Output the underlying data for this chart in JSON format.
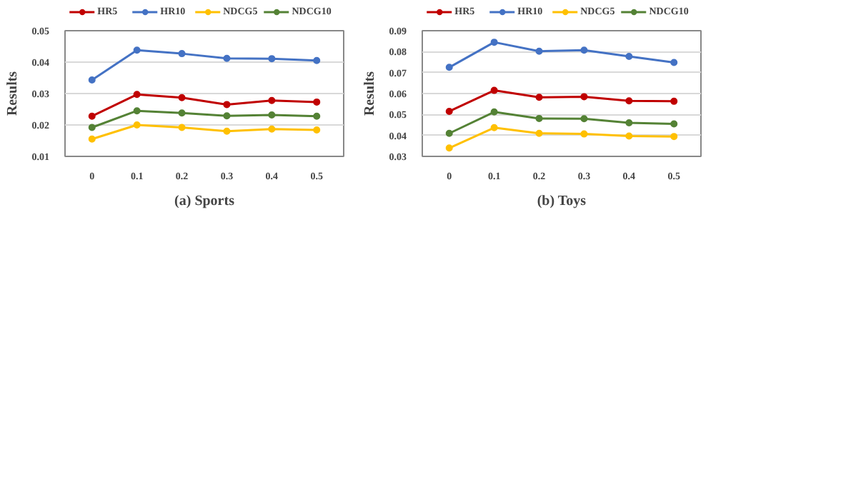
{
  "chart_data": [
    {
      "type": "line",
      "title": "(a) Sports",
      "ylabel": "Results",
      "categories": [
        "0",
        "0.1",
        "0.2",
        "0.3",
        "0.4",
        "0.5"
      ],
      "ylim": [
        0.01,
        0.05
      ],
      "yticks": [
        0.01,
        0.02,
        0.03,
        0.04,
        0.05
      ],
      "grid": "y",
      "legend": "top",
      "marker": "circle",
      "series": [
        {
          "name": "HR5",
          "color": "#c00000",
          "values": [
            0.0228,
            0.0297,
            0.0287,
            0.0265,
            0.0278,
            0.0273
          ]
        },
        {
          "name": "HR10",
          "color": "#4472c4",
          "values": [
            0.0343,
            0.0438,
            0.0427,
            0.0412,
            0.0411,
            0.0405
          ]
        },
        {
          "name": "NDCG5",
          "color": "#ffc000",
          "values": [
            0.0155,
            0.02,
            0.0192,
            0.018,
            0.0187,
            0.0184
          ]
        },
        {
          "name": "NDCG10",
          "color": "#548235",
          "values": [
            0.0192,
            0.0245,
            0.0238,
            0.0229,
            0.0232,
            0.0228
          ]
        }
      ]
    },
    {
      "type": "line",
      "title": "(b) Toys",
      "ylabel": "Results",
      "categories": [
        "0",
        "0.1",
        "0.2",
        "0.3",
        "0.4",
        "0.5"
      ],
      "ylim": [
        0.03,
        0.09
      ],
      "yticks": [
        0.03,
        0.04,
        0.05,
        0.06,
        0.07,
        0.08,
        0.09
      ],
      "grid": "y",
      "legend": "top",
      "marker": "circle",
      "series": [
        {
          "name": "HR5",
          "color": "#c00000",
          "values": [
            0.0515,
            0.0615,
            0.0582,
            0.0585,
            0.0565,
            0.0563
          ]
        },
        {
          "name": "HR10",
          "color": "#4472c4",
          "values": [
            0.0725,
            0.0845,
            0.0802,
            0.0807,
            0.0777,
            0.0748
          ]
        },
        {
          "name": "NDCG5",
          "color": "#ffc000",
          "values": [
            0.034,
            0.0437,
            0.041,
            0.0407,
            0.0397,
            0.0395
          ]
        },
        {
          "name": "NDCG10",
          "color": "#548235",
          "values": [
            0.041,
            0.0512,
            0.0481,
            0.048,
            0.046,
            0.0455
          ]
        }
      ]
    }
  ]
}
